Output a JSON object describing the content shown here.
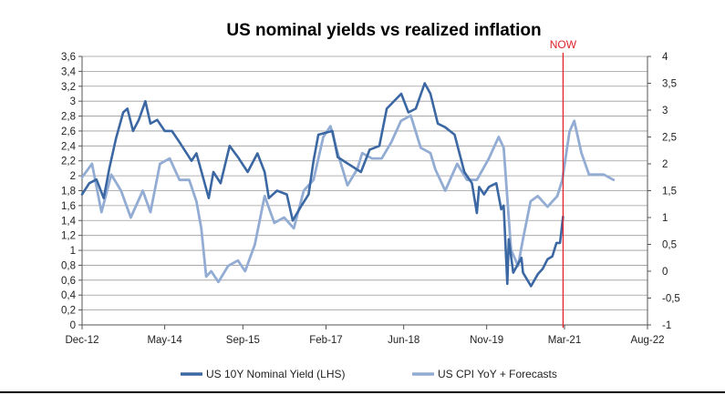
{
  "chart_data": {
    "type": "line",
    "title": "US nominal yields vs realized inflation",
    "annotation": "NOW",
    "annotation_x": "2021-02-20",
    "x_axis": {
      "type": "date",
      "range": [
        "2012-12-01",
        "2022-08-01"
      ],
      "tick_dates": [
        "2012-12-01",
        "2014-05-01",
        "2015-09-01",
        "2017-02-01",
        "2018-06-01",
        "2019-11-01",
        "2021-03-01",
        "2022-08-01"
      ],
      "tick_labels": [
        "Dec-12",
        "May-14",
        "Sep-15",
        "Feb-17",
        "Jun-18",
        "Nov-19",
        "Mar-21",
        "Aug-22"
      ]
    },
    "y_left": {
      "range": [
        0,
        3.6
      ],
      "ticks": [
        0,
        0.2,
        0.4,
        0.6,
        0.8,
        1,
        1.2,
        1.4,
        1.6,
        1.8,
        2,
        2.2,
        2.4,
        2.6,
        2.8,
        3,
        3.2,
        3.4,
        3.6
      ],
      "tick_labels": [
        "0",
        "0,2",
        "0,4",
        "0,6",
        "0,8",
        "1",
        "1,2",
        "1,4",
        "1,6",
        "1,8",
        "2",
        "2,2",
        "2,4",
        "2,6",
        "2,8",
        "3",
        "3,2",
        "3,4",
        "3,6"
      ]
    },
    "y_right": {
      "range": [
        -1,
        4
      ],
      "ticks": [
        -1,
        -0.5,
        0,
        0.5,
        1,
        1.5,
        2,
        2.5,
        3,
        3.5,
        4
      ],
      "tick_labels": [
        "-1",
        "-0,5",
        "0",
        "0,5",
        "1",
        "1,5",
        "2",
        "2,5",
        "3",
        "3,5",
        "4"
      ]
    },
    "grid": true,
    "legend_position": "bottom",
    "series": [
      {
        "name": "US 10Y Nominal Yield (LHS)",
        "axis": "left",
        "color": "#3b67a3",
        "points": [
          [
            "2012-12-01",
            1.75
          ],
          [
            "2013-01-15",
            1.9
          ],
          [
            "2013-03-01",
            1.95
          ],
          [
            "2013-04-15",
            1.7
          ],
          [
            "2013-05-20",
            2.1
          ],
          [
            "2013-07-01",
            2.5
          ],
          [
            "2013-08-15",
            2.85
          ],
          [
            "2013-09-10",
            2.9
          ],
          [
            "2013-10-15",
            2.6
          ],
          [
            "2013-11-20",
            2.75
          ],
          [
            "2013-12-31",
            3.0
          ],
          [
            "2014-02-01",
            2.7
          ],
          [
            "2014-03-15",
            2.75
          ],
          [
            "2014-05-01",
            2.6
          ],
          [
            "2014-06-15",
            2.6
          ],
          [
            "2014-08-01",
            2.45
          ],
          [
            "2014-10-15",
            2.2
          ],
          [
            "2014-11-15",
            2.3
          ],
          [
            "2015-01-31",
            1.7
          ],
          [
            "2015-03-01",
            2.05
          ],
          [
            "2015-04-15",
            1.9
          ],
          [
            "2015-06-10",
            2.4
          ],
          [
            "2015-08-01",
            2.25
          ],
          [
            "2015-10-01",
            2.05
          ],
          [
            "2015-12-01",
            2.3
          ],
          [
            "2016-01-15",
            2.05
          ],
          [
            "2016-02-10",
            1.7
          ],
          [
            "2016-04-01",
            1.8
          ],
          [
            "2016-06-01",
            1.75
          ],
          [
            "2016-07-08",
            1.4
          ],
          [
            "2016-09-01",
            1.6
          ],
          [
            "2016-10-15",
            1.75
          ],
          [
            "2016-11-15",
            2.2
          ],
          [
            "2016-12-15",
            2.55
          ],
          [
            "2017-03-13",
            2.6
          ],
          [
            "2017-04-15",
            2.25
          ],
          [
            "2017-06-26",
            2.15
          ],
          [
            "2017-09-07",
            2.05
          ],
          [
            "2017-11-01",
            2.35
          ],
          [
            "2017-12-31",
            2.4
          ],
          [
            "2018-02-15",
            2.9
          ],
          [
            "2018-05-17",
            3.1
          ],
          [
            "2018-07-01",
            2.85
          ],
          [
            "2018-08-15",
            2.9
          ],
          [
            "2018-10-10",
            3.24
          ],
          [
            "2018-11-15",
            3.1
          ],
          [
            "2018-12-31",
            2.7
          ],
          [
            "2019-02-15",
            2.65
          ],
          [
            "2019-04-15",
            2.55
          ],
          [
            "2019-06-15",
            2.05
          ],
          [
            "2019-08-01",
            1.9
          ],
          [
            "2019-09-01",
            1.5
          ],
          [
            "2019-09-15",
            1.85
          ],
          [
            "2019-10-15",
            1.75
          ],
          [
            "2019-11-15",
            1.85
          ],
          [
            "2019-12-31",
            1.9
          ],
          [
            "2020-01-31",
            1.55
          ],
          [
            "2020-02-15",
            1.6
          ],
          [
            "2020-03-09",
            0.55
          ],
          [
            "2020-03-18",
            1.15
          ],
          [
            "2020-04-15",
            0.7
          ],
          [
            "2020-06-05",
            0.9
          ],
          [
            "2020-06-15",
            0.7
          ],
          [
            "2020-08-04",
            0.52
          ],
          [
            "2020-09-15",
            0.68
          ],
          [
            "2020-10-15",
            0.75
          ],
          [
            "2020-11-15",
            0.88
          ],
          [
            "2020-12-15",
            0.92
          ],
          [
            "2021-01-10",
            1.1
          ],
          [
            "2021-02-01",
            1.1
          ],
          [
            "2021-02-20",
            1.45
          ]
        ]
      },
      {
        "name": "US CPI YoY + Forecasts",
        "axis": "right",
        "color": "#93acd3",
        "points": [
          [
            "2012-12-01",
            1.75
          ],
          [
            "2013-02-01",
            2.0
          ],
          [
            "2013-04-01",
            1.1
          ],
          [
            "2013-06-01",
            1.8
          ],
          [
            "2013-08-01",
            1.5
          ],
          [
            "2013-10-01",
            1.0
          ],
          [
            "2013-12-15",
            1.5
          ],
          [
            "2014-02-01",
            1.1
          ],
          [
            "2014-04-01",
            2.0
          ],
          [
            "2014-06-01",
            2.1
          ],
          [
            "2014-08-01",
            1.7
          ],
          [
            "2014-10-01",
            1.7
          ],
          [
            "2014-11-15",
            1.3
          ],
          [
            "2014-12-15",
            0.8
          ],
          [
            "2015-01-15",
            -0.1
          ],
          [
            "2015-02-15",
            0.0
          ],
          [
            "2015-04-01",
            -0.2
          ],
          [
            "2015-06-01",
            0.1
          ],
          [
            "2015-08-01",
            0.2
          ],
          [
            "2015-09-15",
            0.0
          ],
          [
            "2015-11-15",
            0.5
          ],
          [
            "2016-01-15",
            1.4
          ],
          [
            "2016-03-15",
            0.9
          ],
          [
            "2016-05-15",
            1.0
          ],
          [
            "2016-07-15",
            0.8
          ],
          [
            "2016-09-15",
            1.5
          ],
          [
            "2016-11-15",
            1.7
          ],
          [
            "2017-01-15",
            2.5
          ],
          [
            "2017-03-01",
            2.7
          ],
          [
            "2017-04-15",
            2.2
          ],
          [
            "2017-06-15",
            1.6
          ],
          [
            "2017-08-15",
            1.9
          ],
          [
            "2017-09-15",
            2.2
          ],
          [
            "2017-11-15",
            2.1
          ],
          [
            "2018-01-15",
            2.1
          ],
          [
            "2018-03-15",
            2.4
          ],
          [
            "2018-05-15",
            2.8
          ],
          [
            "2018-07-15",
            2.9
          ],
          [
            "2018-09-15",
            2.3
          ],
          [
            "2018-11-15",
            2.2
          ],
          [
            "2018-12-15",
            1.9
          ],
          [
            "2019-02-15",
            1.5
          ],
          [
            "2019-05-01",
            2.0
          ],
          [
            "2019-07-01",
            1.7
          ],
          [
            "2019-09-01",
            1.7
          ],
          [
            "2019-11-15",
            2.1
          ],
          [
            "2020-01-15",
            2.5
          ],
          [
            "2020-02-15",
            2.3
          ],
          [
            "2020-04-01",
            0.4
          ],
          [
            "2020-05-15",
            0.1
          ],
          [
            "2020-06-15",
            0.6
          ],
          [
            "2020-08-01",
            1.3
          ],
          [
            "2020-09-15",
            1.4
          ],
          [
            "2020-11-15",
            1.2
          ],
          [
            "2021-01-15",
            1.4
          ],
          [
            "2021-02-15",
            1.7
          ],
          [
            "2021-04-01",
            2.6
          ],
          [
            "2021-05-01",
            2.8
          ],
          [
            "2021-06-15",
            2.2
          ],
          [
            "2021-08-01",
            1.8
          ],
          [
            "2021-11-01",
            1.8
          ],
          [
            "2022-01-01",
            1.7
          ]
        ]
      }
    ]
  }
}
